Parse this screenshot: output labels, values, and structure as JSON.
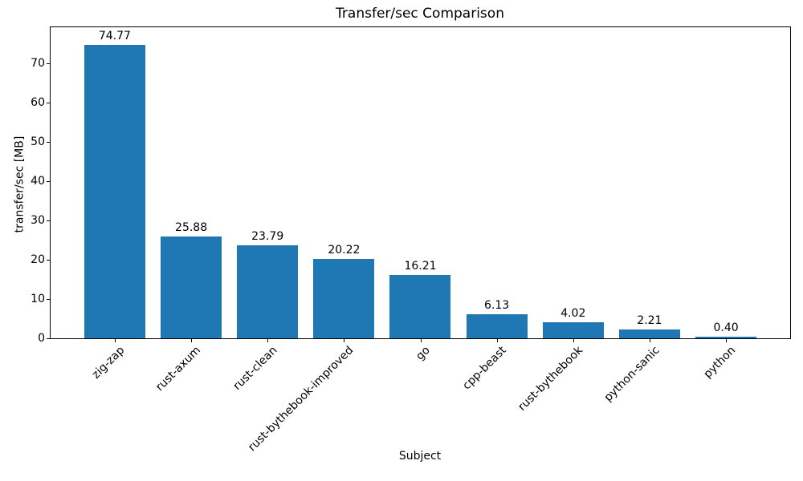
{
  "chart_data": {
    "type": "bar",
    "title": "Transfer/sec Comparison",
    "xlabel": "Subject",
    "ylabel": "transfer/sec [MB]",
    "categories": [
      "zig-zap",
      "rust-axum",
      "rust-clean",
      "rust-bythebook-improved",
      "go",
      "cpp-beast",
      "rust-bythebook",
      "python-sanic",
      "python"
    ],
    "values": [
      74.77,
      25.88,
      23.79,
      20.22,
      16.21,
      6.13,
      4.02,
      2.21,
      0.4
    ],
    "value_labels": [
      "74.77",
      "25.88",
      "23.79",
      "20.22",
      "16.21",
      "6.13",
      "4.02",
      "2.21",
      "0.40"
    ],
    "bar_color": "#1f77b4",
    "axis_color": "#000000",
    "background_color": "#ffffff",
    "ylim": [
      0,
      79.2
    ],
    "yticks": [
      0,
      10,
      20,
      30,
      40,
      50,
      60,
      70
    ],
    "grid": false,
    "legend": "none",
    "x_tick_rotation_deg": 45
  }
}
